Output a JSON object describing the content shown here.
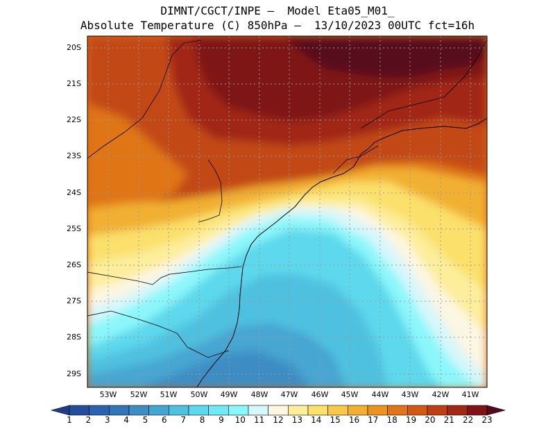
{
  "header": {
    "line1": "DIMNT/CGCT/INPE –  Model Eta05_M01_",
    "line2": "Absolute Temperature (C) 850hPa –  13/10/2023 00UTC fct=16h"
  },
  "map": {
    "lat_labels": [
      "20S",
      "21S",
      "22S",
      "23S",
      "24S",
      "25S",
      "26S",
      "27S",
      "28S",
      "29S"
    ],
    "lon_labels": [
      "53W",
      "52W",
      "51W",
      "50W",
      "49W",
      "48W",
      "47W",
      "46W",
      "45W",
      "44W",
      "43W",
      "42W",
      "41W"
    ]
  },
  "colorbar": {
    "labels": [
      "1",
      "2",
      "3",
      "4",
      "5",
      "6",
      "7",
      "8",
      "9",
      "10",
      "11",
      "12",
      "13",
      "14",
      "15",
      "16",
      "17",
      "18",
      "19",
      "20",
      "21",
      "22",
      "23"
    ],
    "colors": [
      "#1f3c8a",
      "#244d9c",
      "#2a62ae",
      "#3376b8",
      "#3d8dc4",
      "#46a6d2",
      "#4fc1e0",
      "#5dd8ec",
      "#6ee9f5",
      "#8cf7fb",
      "#d6f7fb",
      "#fdf6e2",
      "#fdee9c",
      "#fbe06c",
      "#f7c94a",
      "#f1b030",
      "#ea9420",
      "#e07418",
      "#d25914",
      "#bd3f14",
      "#a12815",
      "#7f1418",
      "#58081a"
    ]
  }
}
